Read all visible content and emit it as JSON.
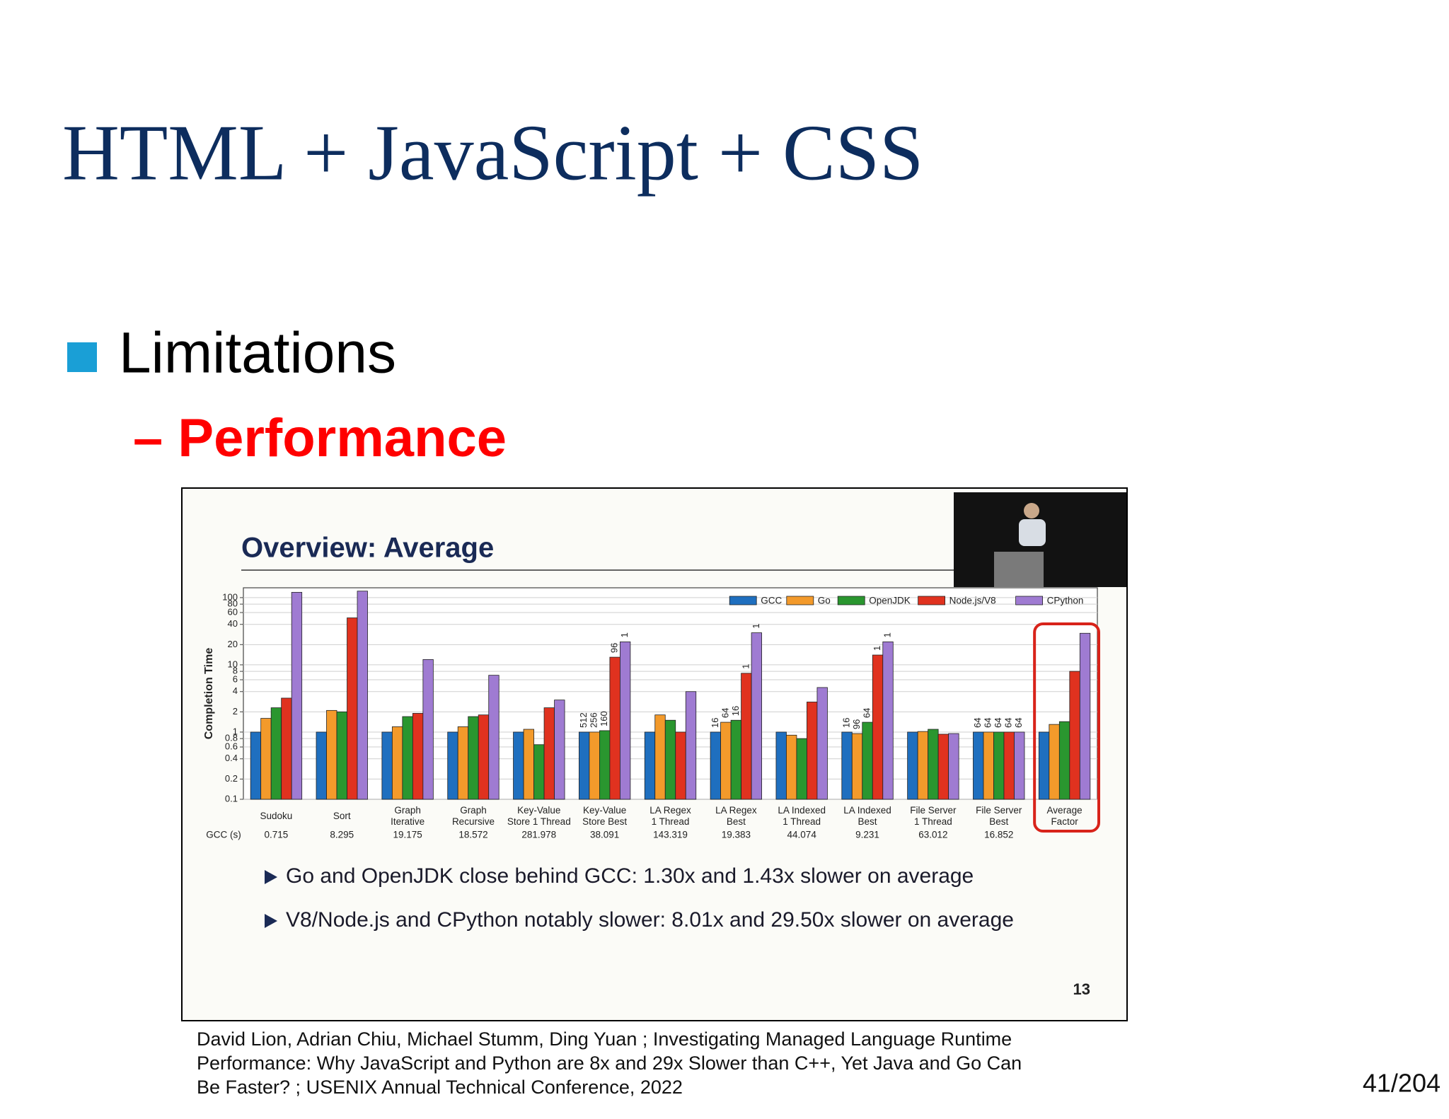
{
  "slide": {
    "title": "HTML + JavaScript + CSS",
    "bullet": "Limitations",
    "sub_bullet": "– Performance",
    "embedded_title": "Overview: Average",
    "notes": [
      "Go and OpenJDK close behind GCC: 1.30x and 1.43x slower on average",
      "V8/Node.js and CPython notably slower: 8.01x and 29.50x slower on average"
    ],
    "embedded_page": 13,
    "citation": [
      "David Lion, Adrian Chiu, Michael Stumm, Ding Yuan ; Investigating Managed Language Runtime",
      "Performance: Why JavaScript and Python are 8x and 29x Slower than C++, Yet Java and Go Can",
      "Be Faster? ; USENIX Annual Technical Conference, 2022"
    ],
    "page_number": "41/204"
  },
  "chart_data": {
    "type": "bar",
    "y_label": "Completion Time",
    "log_scale": true,
    "grid": true,
    "legend": "top-right",
    "categories": [
      "Sudoku",
      "Sort",
      "Graph\nIterative",
      "Graph\nRecursive",
      "Key-Value\nStore 1 Thread",
      "Key-Value\nStore Best",
      "LA Regex\n1 Thread",
      "LA Regex\nBest",
      "LA Indexed\n1 Thread",
      "LA Indexed\nBest",
      "File Server\n1 Thread",
      "File Server\nBest",
      "Average\nFactor"
    ],
    "highlight": "Average\nFactor",
    "series": [
      {
        "name": "GCC",
        "color": "#1f6fbf",
        "values": [
          1,
          1,
          1,
          1,
          1,
          1,
          1,
          1,
          1,
          1,
          1,
          1,
          1
        ]
      },
      {
        "name": "Go",
        "color": "#f39a2b",
        "values": [
          1.6,
          2.1,
          1.2,
          1.2,
          1.1,
          1,
          1.8,
          1.4,
          0.9,
          0.95,
          1.02,
          1,
          1.3
        ]
      },
      {
        "name": "OpenJDK",
        "color": "#2a962f",
        "values": [
          2.3,
          2.0,
          1.7,
          1.7,
          0.65,
          1.05,
          1.5,
          1.5,
          0.8,
          1.4,
          1.1,
          1,
          1.43
        ]
      },
      {
        "name": "Node.js/V8",
        "color": "#e0321f",
        "values": [
          3.2,
          50,
          1.9,
          1.8,
          2.3,
          13,
          1,
          7.5,
          2.8,
          14,
          0.93,
          1,
          8.01
        ]
      },
      {
        "name": "CPython",
        "color": "#9f7bd2",
        "values": [
          120,
          125,
          12,
          7,
          3.0,
          22,
          4,
          30,
          4.6,
          22,
          0.95,
          1,
          29.5
        ]
      }
    ],
    "thread_labels": [
      null,
      null,
      null,
      null,
      null,
      [
        512,
        256,
        160,
        96,
        1
      ],
      null,
      [
        16,
        64,
        16,
        1,
        1
      ],
      null,
      [
        16,
        96,
        64,
        1,
        1
      ],
      null,
      [
        64,
        64,
        64,
        64,
        64
      ],
      null
    ],
    "ylim": [
      0.1,
      140
    ],
    "yticks": [
      0.1,
      0.2,
      0.4,
      0.6,
      0.8,
      1,
      2,
      4,
      6,
      8,
      10,
      20,
      40,
      60,
      80,
      100
    ],
    "gcc_row": {
      "label": "GCC (s)",
      "values": [
        0.715,
        8.295,
        19.175,
        18.572,
        281.978,
        38.091,
        143.319,
        19.383,
        44.074,
        9.231,
        63.012,
        16.852
      ]
    }
  }
}
